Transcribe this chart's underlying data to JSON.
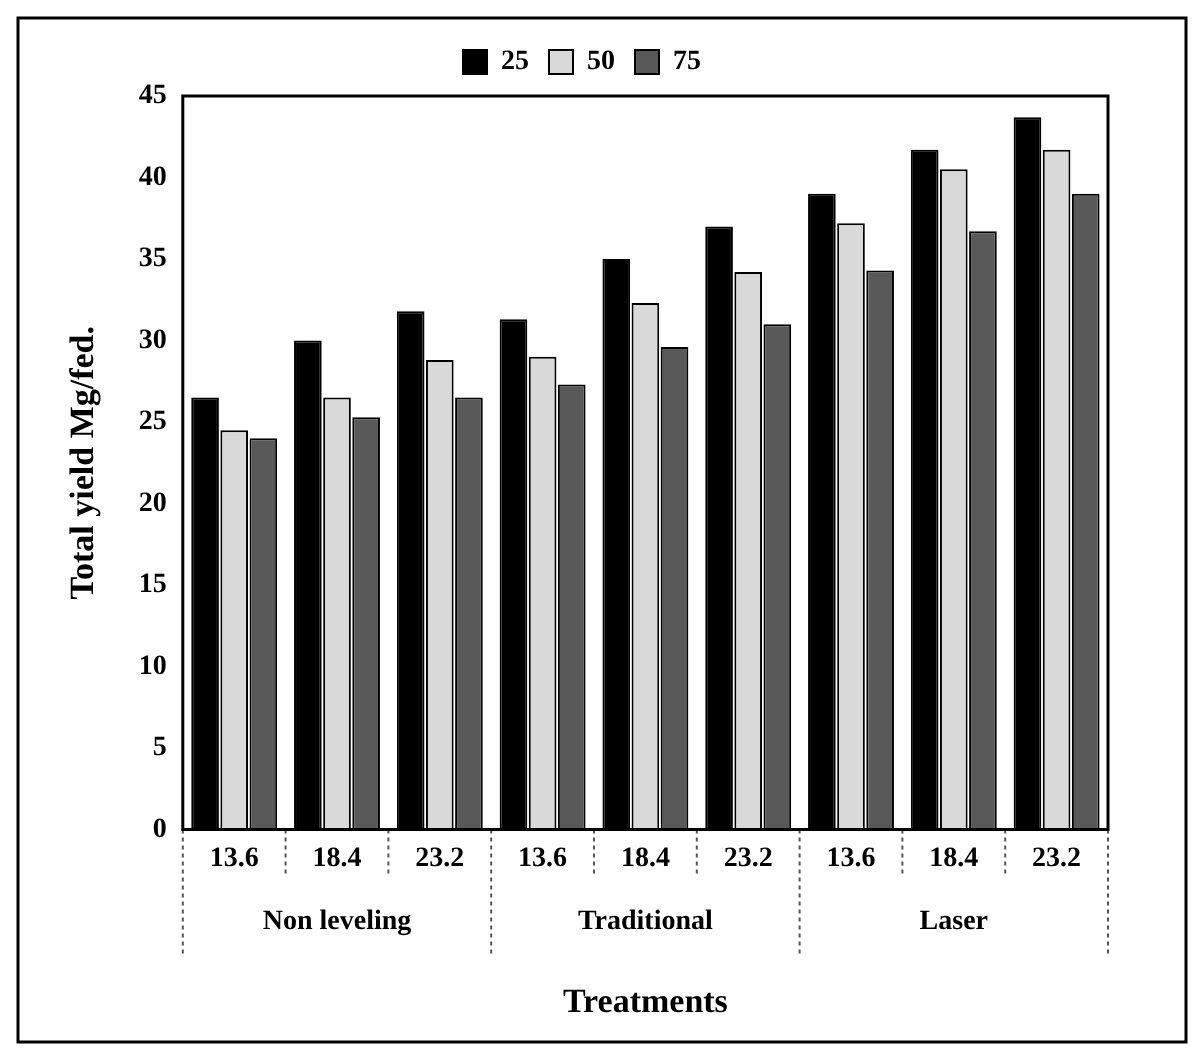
{
  "chart_data": {
    "type": "bar",
    "xlabel": "Treatments",
    "ylabel": "Total yield Mg/fed.",
    "categories": [
      "13.6",
      "18.4",
      "23.2",
      "13.6",
      "18.4",
      "23.2",
      "13.6",
      "18.4",
      "23.2"
    ],
    "annotations": [
      "Non leveling",
      "Traditional",
      "Laser"
    ],
    "series": [
      {
        "name": "25",
        "color": "#000000",
        "values": [
          26.5,
          30,
          31.8,
          31.3,
          35,
          37,
          39,
          41.7,
          43.7
        ]
      },
      {
        "name": "50",
        "color": "#d9d9d9",
        "values": [
          24.5,
          26.5,
          28.8,
          29,
          32.3,
          34.2,
          37.2,
          40.5,
          41.7
        ]
      },
      {
        "name": "75",
        "color": "#595959",
        "values": [
          24,
          25.3,
          26.5,
          27.3,
          29.6,
          31,
          34.3,
          36.7,
          39
        ]
      }
    ],
    "ylim": [
      0,
      45
    ],
    "yticks": [
      0,
      5,
      10,
      15,
      20,
      25,
      30,
      35,
      40,
      45
    ],
    "grid": false,
    "legend": "top"
  }
}
